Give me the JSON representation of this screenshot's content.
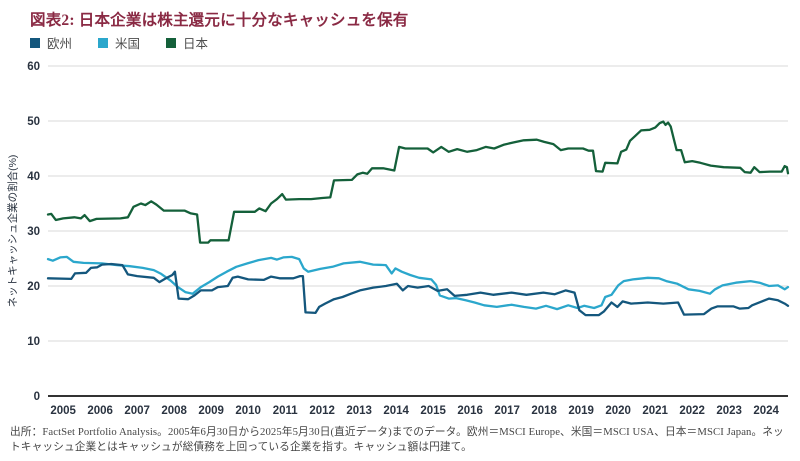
{
  "title": "図表2: 日本企業は株主還元に十分なキャッシュを保有",
  "source_note": "出所：FactSet Portfolio Analysis。2005年6月30日から2025年5月30日(直近データ)までのデータ。欧州＝MSCI Europe、米国＝MSCI USA、日本＝MSCI Japan。ネットキャッシュ企業とはキャッシュが総債務を上回っている企業を指す。キャッシュ額は円建て。",
  "colors": {
    "title": "#8A2A44",
    "europe": "#14577D",
    "usa": "#2BA7CC",
    "japan": "#14603A",
    "gridline": "#d9d9d9",
    "zero_axis": "#333333",
    "axis_text": "#2A3340",
    "footnote_text": "#454545"
  },
  "chart_data": {
    "type": "line",
    "title": "図表2: 日本企業は株主還元に十分なキャッシュを保有",
    "xlabel": "",
    "ylabel": "ネットキャッシュ企業の割合(%)",
    "ylim": [
      0,
      60
    ],
    "yticks": [
      0,
      10,
      20,
      30,
      40,
      50,
      60
    ],
    "x_range": [
      2005.09,
      2025.09
    ],
    "x_tick_years": [
      "2005",
      "2006",
      "2007",
      "2008",
      "2009",
      "2010",
      "2011",
      "2012",
      "2013",
      "2014",
      "2015",
      "2016",
      "2017",
      "2018",
      "2019",
      "2020",
      "2021",
      "2022",
      "2023",
      "2024"
    ],
    "grid": "horizontal",
    "legend_position": "top-left",
    "series": [
      {
        "id": "europe",
        "name": "欧州",
        "color": "#14577D",
        "points": [
          [
            2005.09,
            21.4
          ],
          [
            2005.72,
            21.3
          ],
          [
            2005.82,
            22.3
          ],
          [
            2006.12,
            22.4
          ],
          [
            2006.25,
            23.3
          ],
          [
            2006.42,
            23.4
          ],
          [
            2006.55,
            23.9
          ],
          [
            2006.8,
            24.0
          ],
          [
            2007.1,
            23.8
          ],
          [
            2007.25,
            22.1
          ],
          [
            2007.5,
            21.8
          ],
          [
            2007.95,
            21.5
          ],
          [
            2008.1,
            20.7
          ],
          [
            2008.3,
            21.5
          ],
          [
            2008.45,
            22.0
          ],
          [
            2008.52,
            22.6
          ],
          [
            2008.62,
            17.7
          ],
          [
            2008.88,
            17.6
          ],
          [
            2009.05,
            18.3
          ],
          [
            2009.22,
            19.2
          ],
          [
            2009.52,
            19.2
          ],
          [
            2009.68,
            19.8
          ],
          [
            2009.95,
            20.0
          ],
          [
            2010.08,
            21.5
          ],
          [
            2010.22,
            21.7
          ],
          [
            2010.5,
            21.2
          ],
          [
            2010.92,
            21.1
          ],
          [
            2011.12,
            21.7
          ],
          [
            2011.35,
            21.4
          ],
          [
            2011.72,
            21.4
          ],
          [
            2011.9,
            21.8
          ],
          [
            2011.98,
            21.8
          ],
          [
            2012.05,
            15.2
          ],
          [
            2012.32,
            15.1
          ],
          [
            2012.42,
            16.2
          ],
          [
            2012.58,
            16.8
          ],
          [
            2012.82,
            17.6
          ],
          [
            2013.05,
            18.0
          ],
          [
            2013.28,
            18.6
          ],
          [
            2013.52,
            19.2
          ],
          [
            2013.88,
            19.7
          ],
          [
            2014.22,
            20.0
          ],
          [
            2014.52,
            20.4
          ],
          [
            2014.68,
            19.2
          ],
          [
            2014.82,
            20.0
          ],
          [
            2015.08,
            19.7
          ],
          [
            2015.38,
            20.0
          ],
          [
            2015.62,
            19.1
          ],
          [
            2015.88,
            19.4
          ],
          [
            2016.08,
            18.2
          ],
          [
            2016.42,
            18.4
          ],
          [
            2016.78,
            18.8
          ],
          [
            2017.12,
            18.4
          ],
          [
            2017.62,
            18.8
          ],
          [
            2018.02,
            18.4
          ],
          [
            2018.48,
            18.8
          ],
          [
            2018.78,
            18.5
          ],
          [
            2019.08,
            19.2
          ],
          [
            2019.32,
            18.8
          ],
          [
            2019.45,
            15.6
          ],
          [
            2019.62,
            14.7
          ],
          [
            2019.98,
            14.7
          ],
          [
            2020.12,
            15.4
          ],
          [
            2020.32,
            17.0
          ],
          [
            2020.48,
            16.2
          ],
          [
            2020.62,
            17.2
          ],
          [
            2020.85,
            16.8
          ],
          [
            2021.3,
            17.0
          ],
          [
            2021.72,
            16.8
          ],
          [
            2022.12,
            17.0
          ],
          [
            2022.28,
            14.8
          ],
          [
            2022.82,
            14.9
          ],
          [
            2023.02,
            15.9
          ],
          [
            2023.18,
            16.3
          ],
          [
            2023.62,
            16.3
          ],
          [
            2023.78,
            15.9
          ],
          [
            2024.02,
            16.0
          ],
          [
            2024.12,
            16.5
          ],
          [
            2024.35,
            17.1
          ],
          [
            2024.58,
            17.7
          ],
          [
            2024.82,
            17.4
          ],
          [
            2025.0,
            16.8
          ],
          [
            2025.09,
            16.4
          ]
        ]
      },
      {
        "id": "usa",
        "name": "米国",
        "color": "#2BA7CC",
        "points": [
          [
            2005.09,
            24.9
          ],
          [
            2005.22,
            24.6
          ],
          [
            2005.42,
            25.2
          ],
          [
            2005.6,
            25.3
          ],
          [
            2005.78,
            24.4
          ],
          [
            2006.05,
            24.2
          ],
          [
            2006.55,
            24.1
          ],
          [
            2006.95,
            23.8
          ],
          [
            2007.3,
            23.6
          ],
          [
            2007.65,
            23.3
          ],
          [
            2007.95,
            22.9
          ],
          [
            2008.15,
            22.2
          ],
          [
            2008.4,
            21.0
          ],
          [
            2008.6,
            19.8
          ],
          [
            2008.8,
            18.9
          ],
          [
            2009.0,
            18.6
          ],
          [
            2009.22,
            19.8
          ],
          [
            2009.45,
            20.7
          ],
          [
            2009.68,
            21.7
          ],
          [
            2009.92,
            22.6
          ],
          [
            2010.18,
            23.5
          ],
          [
            2010.48,
            24.1
          ],
          [
            2010.78,
            24.7
          ],
          [
            2011.12,
            25.1
          ],
          [
            2011.28,
            24.8
          ],
          [
            2011.45,
            25.2
          ],
          [
            2011.68,
            25.3
          ],
          [
            2011.88,
            24.9
          ],
          [
            2012.0,
            23.2
          ],
          [
            2012.12,
            22.6
          ],
          [
            2012.45,
            23.1
          ],
          [
            2012.78,
            23.5
          ],
          [
            2013.08,
            24.1
          ],
          [
            2013.52,
            24.4
          ],
          [
            2013.88,
            23.9
          ],
          [
            2014.22,
            23.8
          ],
          [
            2014.38,
            22.3
          ],
          [
            2014.48,
            23.2
          ],
          [
            2014.65,
            22.6
          ],
          [
            2014.88,
            22.0
          ],
          [
            2015.12,
            21.5
          ],
          [
            2015.45,
            21.2
          ],
          [
            2015.58,
            20.2
          ],
          [
            2015.68,
            18.3
          ],
          [
            2015.92,
            17.7
          ],
          [
            2016.12,
            17.8
          ],
          [
            2016.38,
            17.4
          ],
          [
            2016.62,
            17.0
          ],
          [
            2016.88,
            16.5
          ],
          [
            2017.22,
            16.2
          ],
          [
            2017.62,
            16.6
          ],
          [
            2017.95,
            16.2
          ],
          [
            2018.28,
            15.9
          ],
          [
            2018.55,
            16.4
          ],
          [
            2018.85,
            15.8
          ],
          [
            2019.15,
            16.5
          ],
          [
            2019.4,
            16.0
          ],
          [
            2019.58,
            16.4
          ],
          [
            2019.85,
            16.0
          ],
          [
            2020.05,
            16.5
          ],
          [
            2020.15,
            18.0
          ],
          [
            2020.32,
            18.4
          ],
          [
            2020.5,
            20.1
          ],
          [
            2020.65,
            20.9
          ],
          [
            2020.9,
            21.2
          ],
          [
            2021.3,
            21.5
          ],
          [
            2021.6,
            21.4
          ],
          [
            2021.8,
            20.9
          ],
          [
            2022.1,
            20.4
          ],
          [
            2022.4,
            19.4
          ],
          [
            2022.7,
            19.1
          ],
          [
            2022.98,
            18.6
          ],
          [
            2023.12,
            19.4
          ],
          [
            2023.32,
            20.1
          ],
          [
            2023.68,
            20.6
          ],
          [
            2024.08,
            20.9
          ],
          [
            2024.32,
            20.6
          ],
          [
            2024.58,
            20.0
          ],
          [
            2024.82,
            20.1
          ],
          [
            2025.0,
            19.4
          ],
          [
            2025.09,
            19.8
          ]
        ]
      },
      {
        "id": "japan",
        "name": "日本",
        "color": "#14603A",
        "points": [
          [
            2005.09,
            33.0
          ],
          [
            2005.18,
            33.1
          ],
          [
            2005.3,
            32.0
          ],
          [
            2005.5,
            32.3
          ],
          [
            2005.8,
            32.5
          ],
          [
            2005.98,
            32.3
          ],
          [
            2006.08,
            32.9
          ],
          [
            2006.22,
            31.8
          ],
          [
            2006.4,
            32.2
          ],
          [
            2007.05,
            32.3
          ],
          [
            2007.25,
            32.5
          ],
          [
            2007.4,
            34.4
          ],
          [
            2007.6,
            35.0
          ],
          [
            2007.72,
            34.7
          ],
          [
            2007.88,
            35.4
          ],
          [
            2008.02,
            34.8
          ],
          [
            2008.22,
            33.7
          ],
          [
            2008.78,
            33.7
          ],
          [
            2008.95,
            33.2
          ],
          [
            2009.12,
            33.0
          ],
          [
            2009.2,
            27.9
          ],
          [
            2009.42,
            27.9
          ],
          [
            2009.48,
            28.3
          ],
          [
            2009.97,
            28.3
          ],
          [
            2010.12,
            33.5
          ],
          [
            2010.68,
            33.5
          ],
          [
            2010.8,
            34.1
          ],
          [
            2010.97,
            33.6
          ],
          [
            2011.12,
            35.0
          ],
          [
            2011.28,
            35.8
          ],
          [
            2011.42,
            36.7
          ],
          [
            2011.52,
            35.7
          ],
          [
            2011.88,
            35.8
          ],
          [
            2012.2,
            35.8
          ],
          [
            2012.5,
            36.0
          ],
          [
            2012.72,
            36.1
          ],
          [
            2012.82,
            39.2
          ],
          [
            2013.3,
            39.3
          ],
          [
            2013.45,
            40.3
          ],
          [
            2013.6,
            40.6
          ],
          [
            2013.72,
            40.4
          ],
          [
            2013.85,
            41.4
          ],
          [
            2014.15,
            41.4
          ],
          [
            2014.45,
            41.0
          ],
          [
            2014.58,
            45.3
          ],
          [
            2014.75,
            45.0
          ],
          [
            2015.35,
            45.0
          ],
          [
            2015.5,
            44.3
          ],
          [
            2015.72,
            45.3
          ],
          [
            2015.92,
            44.4
          ],
          [
            2016.15,
            44.9
          ],
          [
            2016.42,
            44.4
          ],
          [
            2016.68,
            44.7
          ],
          [
            2016.92,
            45.3
          ],
          [
            2017.15,
            45.0
          ],
          [
            2017.42,
            45.7
          ],
          [
            2017.68,
            46.1
          ],
          [
            2017.95,
            46.5
          ],
          [
            2018.3,
            46.6
          ],
          [
            2018.5,
            46.2
          ],
          [
            2018.75,
            45.8
          ],
          [
            2018.95,
            44.7
          ],
          [
            2019.15,
            45.0
          ],
          [
            2019.55,
            45.0
          ],
          [
            2019.7,
            44.6
          ],
          [
            2019.82,
            44.6
          ],
          [
            2019.9,
            40.9
          ],
          [
            2020.08,
            40.8
          ],
          [
            2020.15,
            42.4
          ],
          [
            2020.48,
            42.3
          ],
          [
            2020.58,
            44.4
          ],
          [
            2020.72,
            44.8
          ],
          [
            2020.82,
            46.4
          ],
          [
            2020.98,
            47.4
          ],
          [
            2021.12,
            48.3
          ],
          [
            2021.35,
            48.4
          ],
          [
            2021.5,
            48.8
          ],
          [
            2021.62,
            49.6
          ],
          [
            2021.72,
            49.9
          ],
          [
            2021.78,
            49.3
          ],
          [
            2021.85,
            49.7
          ],
          [
            2021.92,
            49.0
          ],
          [
            2022.0,
            46.8
          ],
          [
            2022.08,
            44.7
          ],
          [
            2022.2,
            44.7
          ],
          [
            2022.3,
            42.5
          ],
          [
            2022.5,
            42.7
          ],
          [
            2022.72,
            42.4
          ],
          [
            2023.0,
            41.9
          ],
          [
            2023.35,
            41.6
          ],
          [
            2023.8,
            41.5
          ],
          [
            2023.92,
            40.7
          ],
          [
            2024.08,
            40.6
          ],
          [
            2024.18,
            41.6
          ],
          [
            2024.32,
            40.7
          ],
          [
            2024.6,
            40.8
          ],
          [
            2024.92,
            40.8
          ],
          [
            2025.0,
            41.8
          ],
          [
            2025.06,
            41.6
          ],
          [
            2025.09,
            40.5
          ]
        ]
      }
    ]
  }
}
